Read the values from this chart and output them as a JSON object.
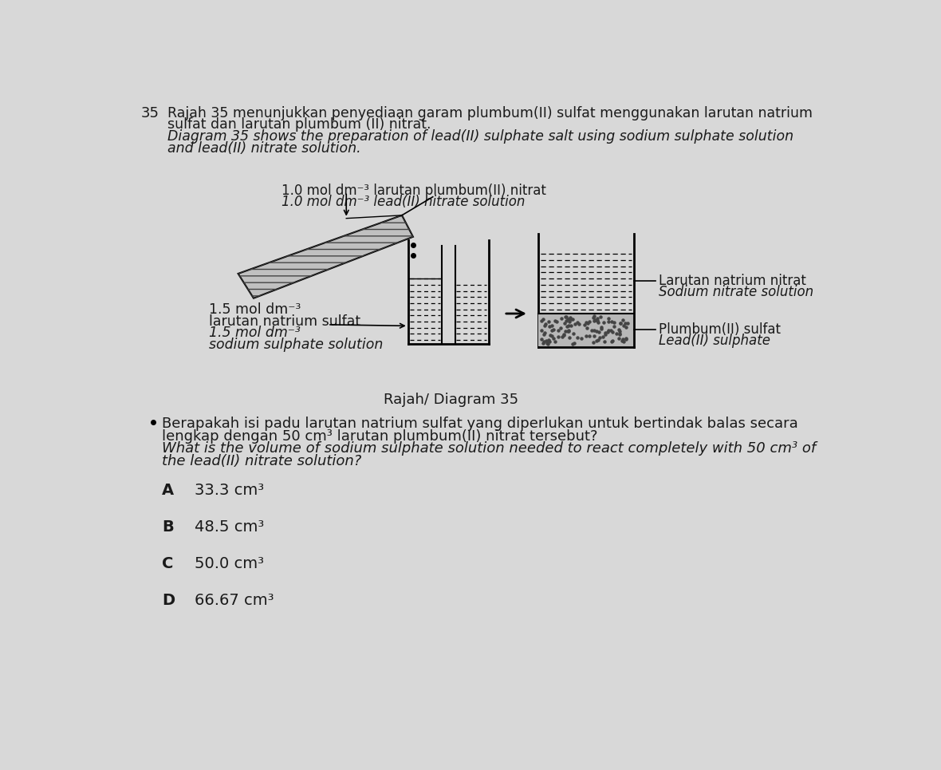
{
  "bg_color": "#d8d8d8",
  "question_number": "35",
  "malay_title_line1": "Rajah 35 menunjukkan penyediaan garam plumbum(II) sulfat menggunakan larutan natrium",
  "malay_title_line2": "sulfat dan larutan plumbum (II) nitrat.",
  "english_title_line1": "Diagram 35 shows the preparation of lead(II) sulphate salt using sodium sulphate solution",
  "english_title_line2": "and lead(II) nitrate solution.",
  "label_lead_nitrate_malay": "1.0 mol dm⁻³ larutan plumbum(II) nitrat",
  "label_lead_nitrate_english": "1.0 mol dm⁻³ lead(II) nitrate solution",
  "label_sodium_sulfate_line1": "1.5 mol dm⁻³",
  "label_sodium_sulfate_line2": "larutan natrium sulfat",
  "label_sodium_sulfate_line3": "1.5 mol dm⁻³",
  "label_sodium_sulfate_line4": "sodium sulphate solution",
  "label_right_top1": "Larutan natrium nitrat",
  "label_right_top2": "Sodium nitrate solution",
  "label_right_bot1": "Plumbum(II) sulfat",
  "label_right_bot2": "Lead(II) sulphate",
  "diagram_label_malay": "Rajah/ Diagram",
  "diagram_label_num": "35",
  "question_malay_line1": "Berapakah isi padu larutan natrium sulfat yang diperlukan untuk bertindak balas secara",
  "question_malay_line2": "lengkap dengan 50 cm³ larutan plumbum(II) nitrat tersebut?",
  "question_english_line1": "What is the volume of sodium sulphate solution needed to react completely with 50 cm³ of",
  "question_english_line2": "the lead(II) nitrate solution?",
  "opt_A_letter": "A",
  "opt_A_val": "33.3 cm³",
  "opt_B_letter": "B",
  "opt_B_val": "48.5 cm³",
  "opt_C_letter": "C",
  "opt_C_val": "50.0 cm³",
  "opt_D_letter": "D",
  "opt_D_val": "66.67 cm³"
}
